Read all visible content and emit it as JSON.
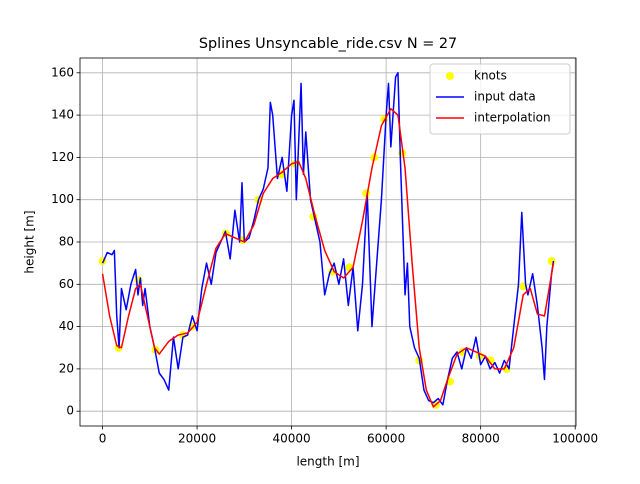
{
  "chart_data": {
    "type": "line",
    "title": "Splines Unsyncable_ride.csv N = 27",
    "x_label": "length [m]",
    "y_label": "height [m]",
    "xlim": [
      -4770,
      100170
    ],
    "ylim": [
      -7,
      167
    ],
    "xticks": [
      0,
      20000,
      40000,
      60000,
      80000,
      100000
    ],
    "yticks": [
      0,
      20,
      40,
      60,
      80,
      100,
      120,
      140,
      160
    ],
    "grid": true,
    "legend": "upper right",
    "series": [
      {
        "name": "knots",
        "color": "#ffff00",
        "kind": "scatter",
        "x": [
          0,
          3400,
          7600,
          11200,
          17000,
          19000,
          26100,
          29700,
          33000,
          37900,
          40800,
          44600,
          48600,
          52200,
          55800,
          57500,
          59600,
          63400,
          67000,
          70500,
          73500,
          76200,
          79800,
          82100,
          85500,
          89000,
          95000
        ],
        "values": [
          71,
          30,
          62,
          29,
          36,
          40,
          84,
          81,
          100,
          112,
          117,
          92,
          66,
          68,
          103,
          120,
          138,
          122,
          24,
          3,
          14,
          28,
          26,
          24,
          20,
          59,
          71
        ]
      },
      {
        "name": "input data",
        "color": "#0000ff",
        "kind": "line",
        "x": [
          0,
          1000,
          2000,
          2500,
          3000,
          3500,
          4000,
          5000,
          6000,
          7000,
          7500,
          8000,
          8500,
          9000,
          10000,
          11000,
          12000,
          13000,
          14000,
          15000,
          16000,
          17000,
          18000,
          19000,
          20000,
          21000,
          22000,
          23000,
          24000,
          25000,
          26000,
          27000,
          28000,
          29000,
          29500,
          30000,
          31000,
          32000,
          33000,
          34000,
          35000,
          35500,
          36000,
          37000,
          38000,
          39000,
          40000,
          40500,
          41000,
          42000,
          42500,
          43000,
          44000,
          45000,
          46000,
          47000,
          48000,
          49000,
          50000,
          51000,
          52000,
          53000,
          54000,
          55000,
          56000,
          57000,
          58000,
          59000,
          60000,
          60500,
          61000,
          62000,
          62500,
          63000,
          64000,
          64500,
          65000,
          66000,
          67000,
          68000,
          69000,
          70000,
          71000,
          72000,
          73000,
          74000,
          75000,
          76000,
          77000,
          78000,
          79000,
          80000,
          81000,
          82000,
          83000,
          84000,
          85000,
          86000,
          87000,
          88000,
          88700,
          89500,
          90000,
          91000,
          92000,
          93000,
          93500,
          94000,
          95000,
          95400
        ],
        "values": [
          70,
          75,
          74,
          76,
          45,
          30,
          58,
          48,
          60,
          67,
          55,
          63,
          50,
          58,
          40,
          30,
          18,
          15,
          10,
          35,
          20,
          35,
          36,
          45,
          38,
          58,
          70,
          60,
          75,
          80,
          85,
          72,
          95,
          80,
          108,
          80,
          82,
          90,
          100,
          105,
          115,
          146,
          140,
          110,
          120,
          104,
          140,
          147,
          100,
          155,
          112,
          132,
          100,
          90,
          80,
          55,
          65,
          70,
          60,
          72,
          50,
          68,
          38,
          60,
          103,
          40,
          70,
          100,
          140,
          155,
          125,
          158,
          160,
          120,
          55,
          70,
          40,
          30,
          25,
          10,
          5,
          4,
          6,
          3,
          15,
          25,
          28,
          20,
          30,
          25,
          35,
          22,
          26,
          20,
          23,
          18,
          24,
          20,
          40,
          60,
          94,
          60,
          55,
          65,
          50,
          30,
          15,
          40,
          65,
          71
        ]
      },
      {
        "name": "interpolation",
        "color": "#ff0000",
        "kind": "line",
        "x": [
          0,
          1500,
          3000,
          4000,
          5500,
          7000,
          8000,
          9500,
          11000,
          12000,
          14000,
          16000,
          18000,
          20000,
          22000,
          24000,
          26000,
          28000,
          30000,
          32000,
          34000,
          36000,
          38000,
          40000,
          41500,
          43000,
          45000,
          47000,
          49000,
          51000,
          53000,
          55000,
          57000,
          59000,
          61000,
          62500,
          64000,
          65500,
          67000,
          68500,
          70000,
          71500,
          73000,
          75000,
          77000,
          79000,
          81000,
          83000,
          85000,
          87000,
          89000,
          90500,
          92000,
          93500,
          95400
        ],
        "values": [
          65,
          45,
          31,
          30,
          45,
          58,
          60,
          45,
          30,
          27,
          33,
          36,
          37,
          42,
          60,
          77,
          84,
          82,
          80,
          88,
          103,
          110,
          113,
          117,
          118,
          110,
          92,
          76,
          66,
          63,
          68,
          90,
          115,
          135,
          143,
          140,
          115,
          70,
          30,
          10,
          2,
          5,
          15,
          27,
          30,
          28,
          26,
          20,
          20,
          30,
          55,
          58,
          46,
          45,
          70
        ]
      }
    ]
  }
}
